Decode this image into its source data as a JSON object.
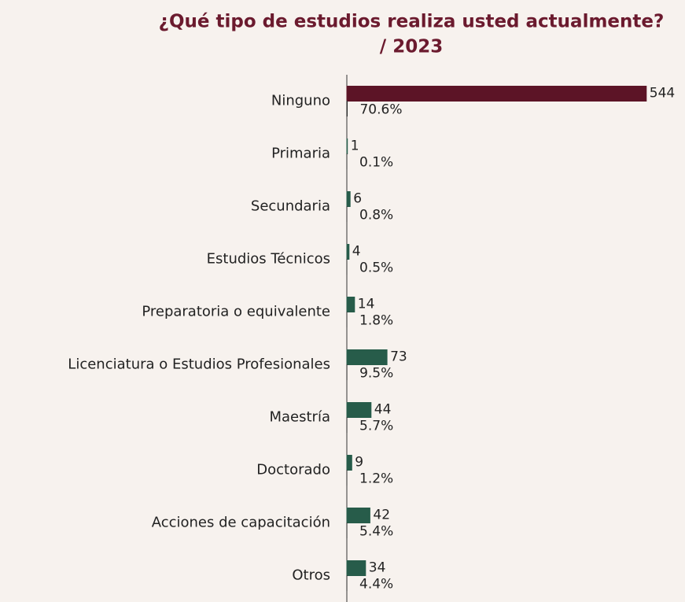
{
  "chart_data": {
    "type": "bar",
    "orientation": "horizontal",
    "title": "¿Qué tipo de estudios realiza usted actualmente?",
    "subtitle": "/ 2023",
    "categories": [
      "Ninguno",
      "Primaria",
      "Secundaria",
      "Estudios Técnicos",
      "Preparatoria o equivalente",
      "Licenciatura o Estudios Profesionales",
      "Maestría",
      "Doctorado",
      "Acciones de capacitación",
      "Otros"
    ],
    "series": [
      {
        "values": [
          544,
          1,
          6,
          4,
          14,
          73,
          44,
          9,
          42,
          34
        ],
        "colors": [
          "#5c1426",
          "#275c4a",
          "#275c4a",
          "#275c4a",
          "#275c4a",
          "#275c4a",
          "#275c4a",
          "#275c4a",
          "#275c4a",
          "#275c4a"
        ]
      },
      {
        "values": [
          0.706,
          0.001,
          0.008,
          0.005,
          0.018,
          0.095,
          0.057,
          0.012,
          0.054,
          0.044
        ],
        "value_labels": [
          "70.6%",
          "0.1%",
          "0.8%",
          "0.5%",
          "1.8%",
          "9.5%",
          "5.7%",
          "1.2%",
          "5.4%",
          "4.4%"
        ],
        "color": "#2a2a2a"
      }
    ],
    "xlim": [
      0,
      560
    ]
  }
}
